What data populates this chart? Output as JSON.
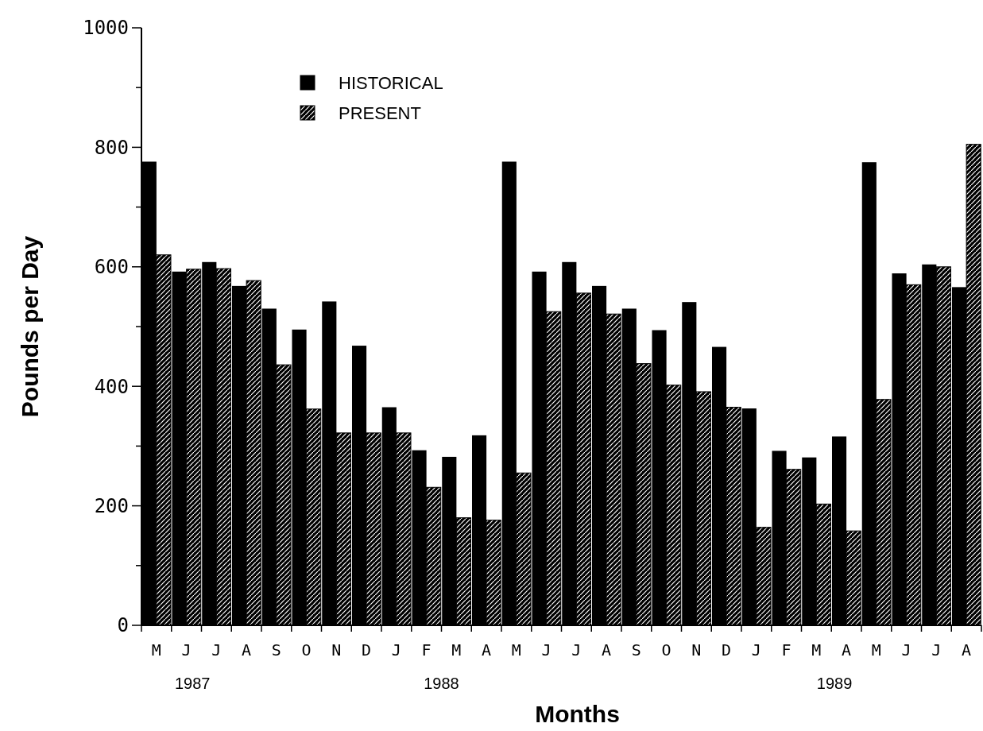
{
  "chart_data": {
    "type": "bar",
    "xlabel": "Months",
    "ylabel": "Pounds per Day",
    "categories": [
      "M",
      "J",
      "J",
      "A",
      "S",
      "O",
      "N",
      "D",
      "J",
      "F",
      "M",
      "A",
      "M",
      "J",
      "J",
      "A",
      "S",
      "O",
      "N",
      "D",
      "J",
      "F",
      "M",
      "A",
      "M",
      "J",
      "J",
      "A"
    ],
    "series": [
      {
        "name": "HISTORICAL",
        "color": "#000000",
        "values": [
          776,
          592,
          608,
          568,
          530,
          495,
          542,
          468,
          365,
          293,
          282,
          318,
          776,
          592,
          608,
          568,
          530,
          494,
          541,
          466,
          363,
          292,
          281,
          316,
          775,
          589,
          604,
          566
        ]
      },
      {
        "name": "PRESENT",
        "color": "#000000",
        "values": [
          620,
          596,
          597,
          577,
          436,
          362,
          322,
          322,
          322,
          231,
          180,
          176,
          255,
          525,
          556,
          521,
          438,
          402,
          391,
          365,
          164,
          261,
          203,
          158,
          378,
          570,
          600,
          805
        ]
      }
    ],
    "ylim": [
      0,
      1000
    ],
    "yticks": [
      0,
      {
        "value": 100,
        "label": null
      },
      200,
      {
        "value": 300,
        "label": null
      },
      400,
      {
        "value": 500,
        "label": null
      },
      600,
      {
        "value": 700,
        "label": null
      },
      800,
      {
        "value": 900,
        "label": null
      },
      1000
    ],
    "legend": "top left",
    "grid": false,
    "annotations": [
      "1987",
      "1988",
      "1989"
    ]
  }
}
